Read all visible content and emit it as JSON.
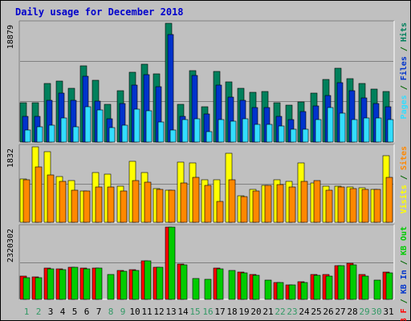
{
  "title": "Daily usage for December 2018",
  "colors": {
    "background": "#c0c0c0",
    "panel": "#c0c0c0",
    "title": "#0000cc",
    "day_label": "#006600",
    "day_label_weekend": "#339966",
    "hits": "#00805c",
    "files": "#0033cc",
    "pages": "#33ddff",
    "visits": "#ffff00",
    "sites": "#ff8800",
    "kb_in": "#ff0000",
    "kb_out": "#00cc00"
  },
  "chart_data": [
    {
      "type": "bar",
      "name": "hits-files-pages",
      "categories": [
        "1",
        "2",
        "3",
        "4",
        "5",
        "6",
        "7",
        "8",
        "9",
        "10",
        "11",
        "12",
        "13",
        "14",
        "15",
        "16",
        "17",
        "18",
        "19",
        "20",
        "21",
        "22",
        "23",
        "24",
        "25",
        "26",
        "27",
        "28",
        "29",
        "30",
        "31"
      ],
      "axis_max_label": "18879",
      "ylim": [
        0,
        18879
      ],
      "right_label": [
        {
          "text": "Pages",
          "color": "#33ddff"
        },
        {
          "text": " / ",
          "color": "#006600"
        },
        {
          "text": "Files",
          "color": "#0033cc"
        },
        {
          "text": " / ",
          "color": "#006600"
        },
        {
          "text": "Hits",
          "color": "#00805c"
        }
      ],
      "series": [
        {
          "name": "Hits",
          "values": [
            6200,
            6230,
            9280,
            9660,
            8520,
            12100,
            9800,
            5970,
            8130,
            11100,
            12360,
            10850,
            18879,
            5970,
            11300,
            5620,
            11200,
            9530,
            8510,
            7910,
            7980,
            6220,
            5860,
            6390,
            7800,
            10000,
            11700,
            10080,
            9300,
            8470,
            7980
          ]
        },
        {
          "name": "Files",
          "values": [
            4080,
            4060,
            6680,
            7750,
            6670,
            10480,
            6550,
            3740,
            6120,
            9040,
            10720,
            8750,
            17100,
            4060,
            10550,
            4480,
            9000,
            7200,
            6690,
            5470,
            5460,
            4080,
            3600,
            4790,
            5680,
            7400,
            9500,
            8140,
            7000,
            6170,
            5660
          ]
        },
        {
          "name": "Pages",
          "values": [
            1860,
            2400,
            2720,
            3800,
            2370,
            5670,
            5130,
            2320,
            2690,
            5280,
            4950,
            3150,
            1880,
            3600,
            3650,
            1620,
            3600,
            3380,
            3690,
            2760,
            2810,
            2490,
            2050,
            2080,
            3620,
            5450,
            4640,
            3510,
            3860,
            3840,
            3520
          ]
        }
      ]
    },
    {
      "type": "bar",
      "name": "visits-sites",
      "categories": [
        "1",
        "2",
        "3",
        "4",
        "5",
        "6",
        "7",
        "8",
        "9",
        "10",
        "11",
        "12",
        "13",
        "14",
        "15",
        "16",
        "17",
        "18",
        "19",
        "20",
        "21",
        "22",
        "23",
        "24",
        "25",
        "26",
        "27",
        "28",
        "29",
        "30",
        "31"
      ],
      "axis_max_label": "1832",
      "ylim": [
        0,
        1832
      ],
      "right_label": [
        {
          "text": "Visits",
          "color": "#ffff00"
        },
        {
          "text": " / ",
          "color": "#006600"
        },
        {
          "text": "Sites",
          "color": "#ff8800"
        }
      ],
      "series": [
        {
          "name": "Visits",
          "values": [
            1060,
            1830,
            1720,
            1120,
            1020,
            760,
            1210,
            1160,
            880,
            1490,
            1210,
            810,
            770,
            1460,
            1440,
            1040,
            1040,
            1670,
            650,
            790,
            890,
            1040,
            990,
            1450,
            960,
            870,
            880,
            860,
            840,
            790,
            1620
          ]
        },
        {
          "name": "Sites",
          "values": [
            1040,
            1340,
            1150,
            990,
            780,
            760,
            850,
            860,
            760,
            1010,
            970,
            800,
            770,
            950,
            1100,
            890,
            510,
            1040,
            620,
            760,
            900,
            920,
            850,
            1000,
            1010,
            780,
            860,
            820,
            800,
            790,
            1100
          ]
        }
      ]
    },
    {
      "type": "bar",
      "name": "kbin-kbout",
      "categories": [
        "1",
        "2",
        "3",
        "4",
        "5",
        "6",
        "7",
        "8",
        "9",
        "10",
        "11",
        "12",
        "13",
        "14",
        "15",
        "16",
        "17",
        "18",
        "19",
        "20",
        "21",
        "22",
        "23",
        "24",
        "25",
        "26",
        "27",
        "28",
        "29",
        "30",
        "31"
      ],
      "axis_max_label": "2320302",
      "ylim": [
        0,
        2320302
      ],
      "right_label": [
        {
          "text": "KB F",
          "color": "#ff0000"
        },
        {
          "text": " / ",
          "color": "#006600"
        },
        {
          "text": "KB In",
          "color": "#0033cc"
        },
        {
          "text": " / ",
          "color": "#006600"
        },
        {
          "text": "KB Out",
          "color": "#00cc00"
        }
      ],
      "series": [
        {
          "name": "KB In",
          "values": [
            740000,
            710000,
            1010000,
            970000,
            1040000,
            1010000,
            1010000,
            0,
            920000,
            950000,
            1240000,
            1040000,
            2320302,
            1140000,
            0,
            0,
            1010000,
            0,
            880000,
            790000,
            0,
            540000,
            470000,
            570000,
            810000,
            790000,
            1090000,
            1150000,
            800000,
            0,
            880000
          ]
        },
        {
          "name": "KB Out",
          "values": [
            700000,
            690000,
            980000,
            950000,
            1020000,
            990000,
            1010000,
            800000,
            910000,
            940000,
            1230000,
            1020000,
            2320302,
            1110000,
            660000,
            650000,
            990000,
            930000,
            860000,
            780000,
            620000,
            530000,
            460000,
            550000,
            780000,
            750000,
            1070000,
            1120000,
            750000,
            620000,
            860000
          ]
        }
      ]
    }
  ]
}
